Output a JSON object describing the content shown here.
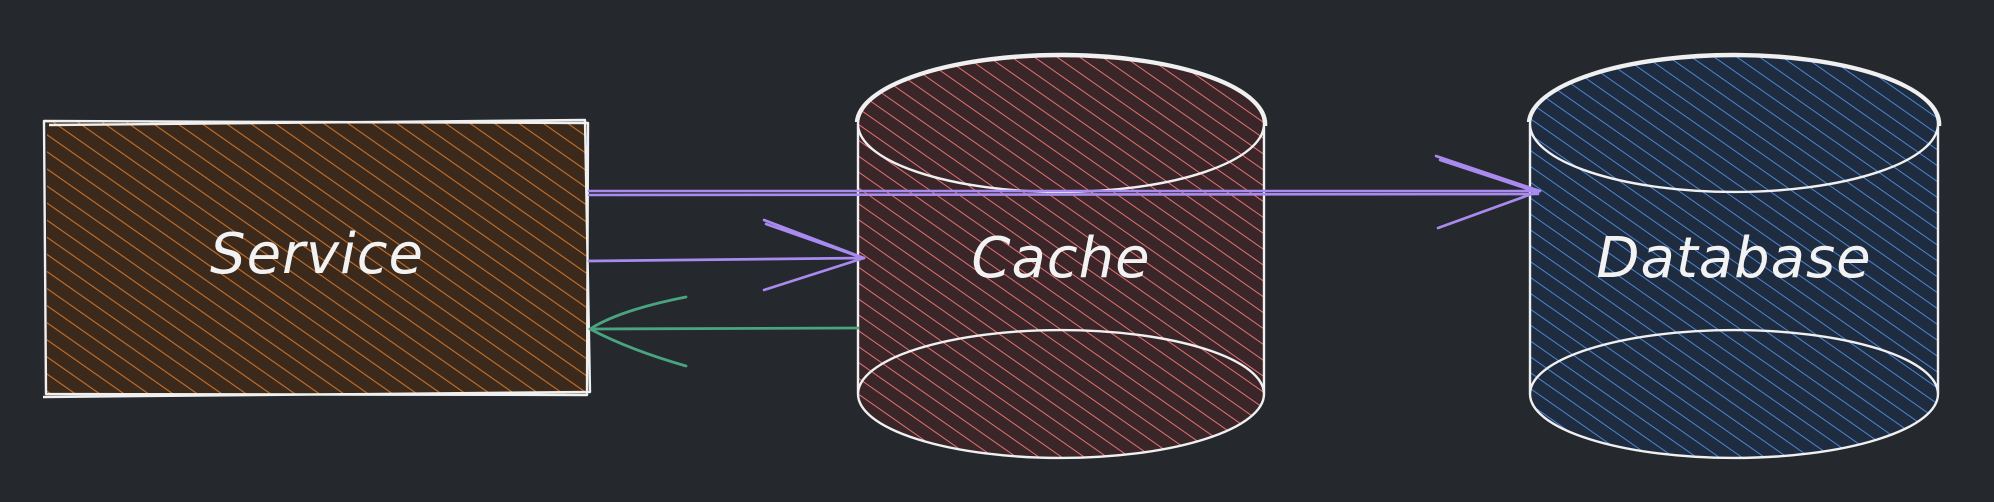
{
  "nodes": [
    {
      "id": "service",
      "label": "Service",
      "shape": "rectangle",
      "fill": "#8a4a12",
      "hatch": "#c8702a"
    },
    {
      "id": "cache",
      "label": "Cache",
      "shape": "cylinder",
      "fill": "#7a2f33",
      "hatch": "#e07276"
    },
    {
      "id": "database",
      "label": "Database",
      "shape": "cylinder",
      "fill": "#1f3f6e",
      "hatch": "#4a86d0"
    }
  ],
  "edges": [
    {
      "from": "service",
      "to": "database",
      "color": "#a98bf0"
    },
    {
      "from": "service",
      "to": "cache",
      "color": "#a98bf0"
    },
    {
      "from": "cache",
      "to": "service",
      "color": "#4aa47f"
    }
  ],
  "colors": {
    "background": "#25282d",
    "outline": "#f0f0f0"
  }
}
